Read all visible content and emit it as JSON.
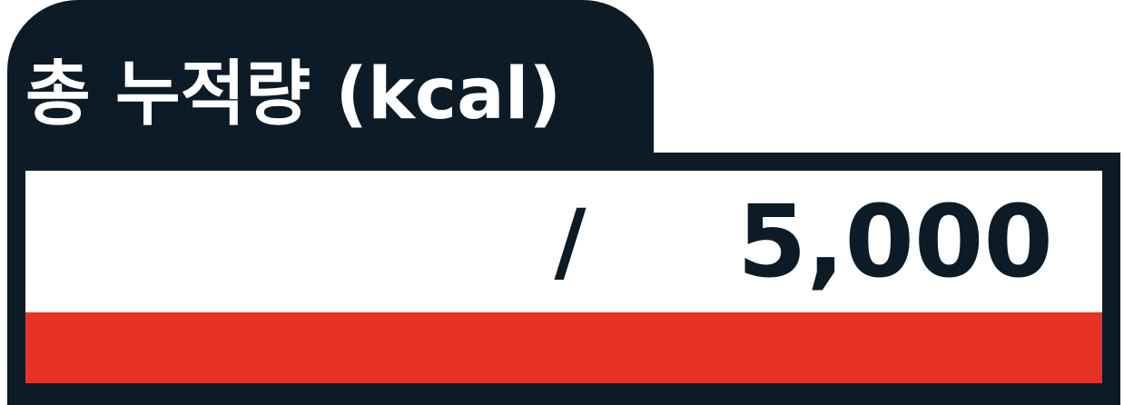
{
  "title": "총 누적량 (kcal)",
  "current_value": "",
  "separator": "/",
  "goal_value": "5,000",
  "progress_fraction": 0,
  "colors": {
    "frame": "#0d1b26",
    "text_on_frame": "#ffffff",
    "box": "#ffffff",
    "value_text": "#0d1b26",
    "bar": "#e63323"
  }
}
